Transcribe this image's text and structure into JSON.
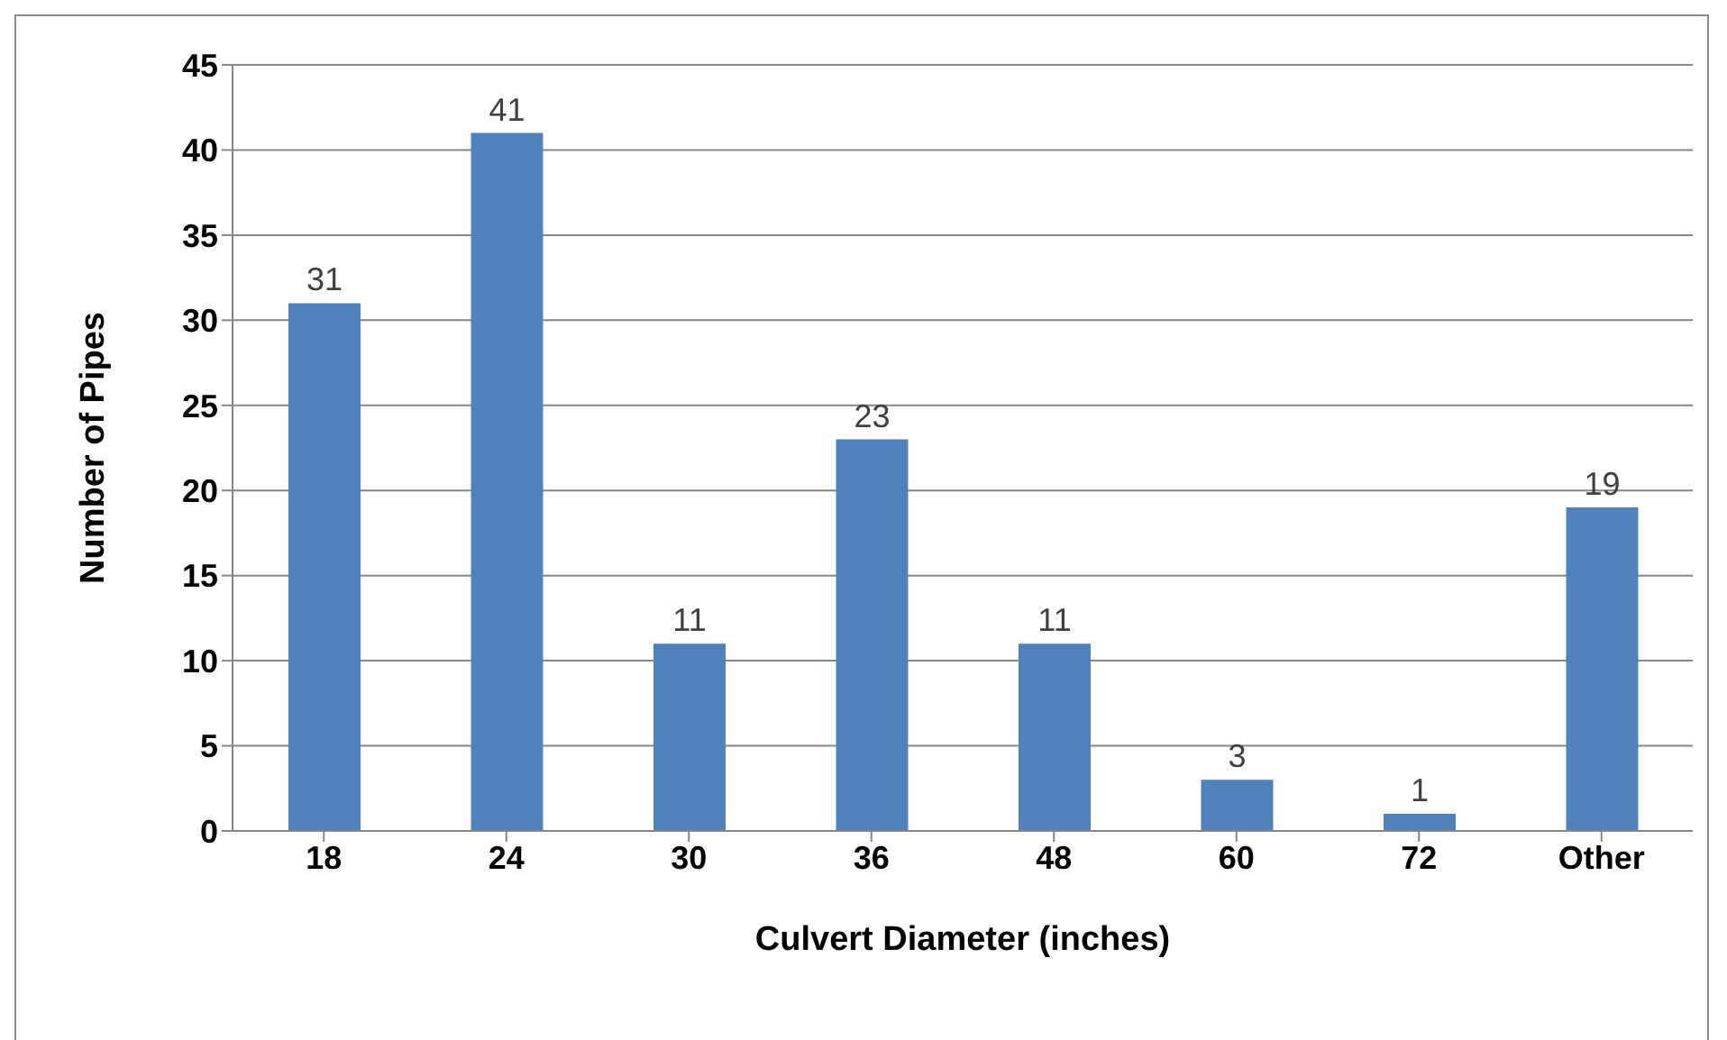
{
  "chart_data": {
    "type": "bar",
    "xlabel": "Culvert Diameter (inches)",
    "ylabel": "Number of Pipes",
    "categories": [
      "18",
      "24",
      "30",
      "36",
      "48",
      "60",
      "72",
      "Other"
    ],
    "values": [
      31,
      41,
      11,
      23,
      11,
      3,
      1,
      19
    ],
    "color": "#4f81bd",
    "ylim": [
      0,
      45
    ],
    "yticks": [
      0,
      5,
      10,
      15,
      20,
      25,
      30,
      35,
      40,
      45
    ],
    "grid": "y",
    "data_labels": true
  }
}
